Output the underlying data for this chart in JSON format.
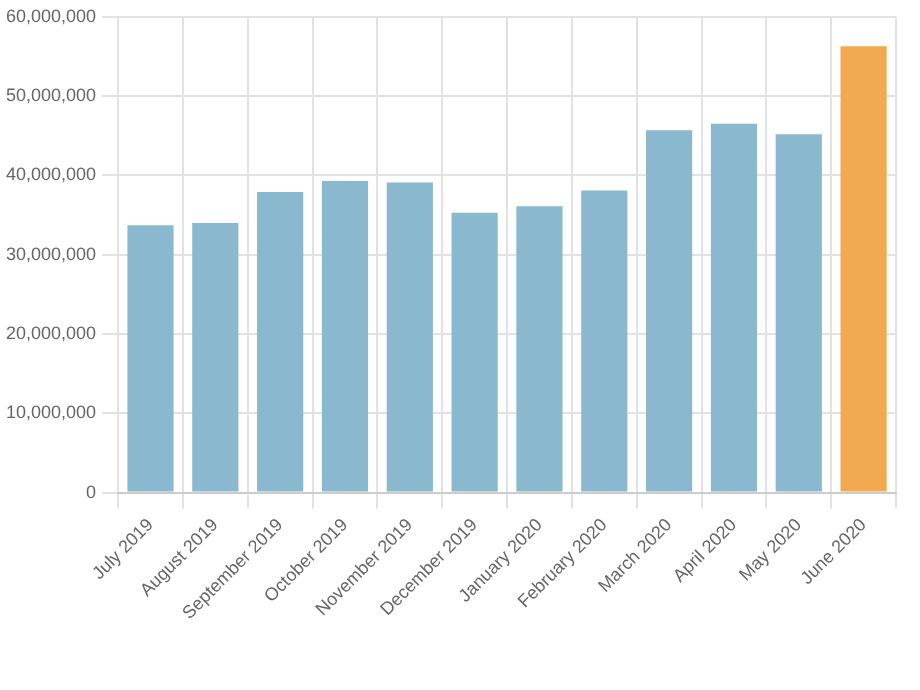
{
  "chart_data": {
    "type": "bar",
    "categories": [
      "July 2019",
      "August 2019",
      "September 2019",
      "October 2019",
      "November 2019",
      "December 2019",
      "January 2020",
      "February 2020",
      "March 2020",
      "April 2020",
      "May 2020",
      "June 2020"
    ],
    "values": [
      33700000,
      34000000,
      37900000,
      39300000,
      39100000,
      35300000,
      36100000,
      38100000,
      45700000,
      46500000,
      45200000,
      56300000
    ],
    "colors": [
      "#8ab8ce",
      "#8ab8ce",
      "#8ab8ce",
      "#8ab8ce",
      "#8ab8ce",
      "#8ab8ce",
      "#8ab8ce",
      "#8ab8ce",
      "#8ab8ce",
      "#8ab8ce",
      "#8ab8ce",
      "#f2aa50"
    ],
    "ylim": [
      0,
      60000000
    ],
    "yticks": [
      0,
      {
        "value": 10000000,
        "label": "10,000,000"
      },
      {
        "value": 20000000,
        "label": "20,000,000"
      },
      {
        "value": 30000000,
        "label": "30,000,000"
      },
      {
        "value": 40000000,
        "label": "40,000,000"
      },
      {
        "value": 50000000,
        "label": "50,000,000"
      },
      {
        "value": 60000000,
        "label": "60,000,000"
      }
    ],
    "grid": true,
    "legend": false
  }
}
